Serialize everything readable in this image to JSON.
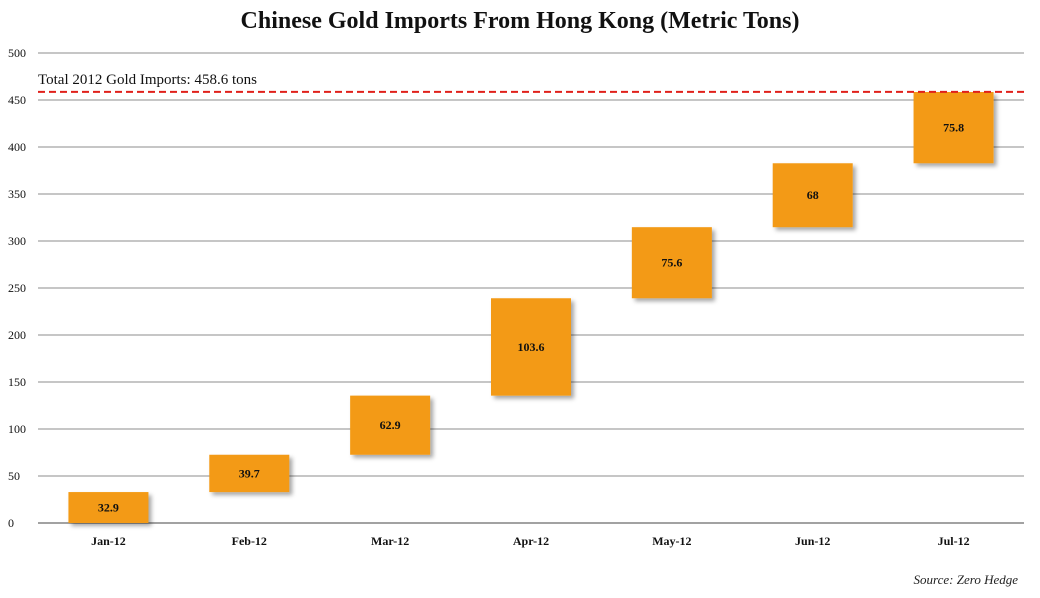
{
  "chart_data": {
    "type": "bar",
    "subtype": "waterfall",
    "title": "Chinese Gold Imports From Hong Kong (Metric Tons)",
    "categories": [
      "Jan-12",
      "Feb-12",
      "Mar-12",
      "Apr-12",
      "May-12",
      "Jun-12",
      "Jul-12"
    ],
    "values": [
      32.9,
      39.7,
      62.9,
      103.6,
      75.6,
      68,
      75.8
    ],
    "value_labels": [
      "32.9",
      "39.7",
      "62.9",
      "103.6",
      "75.6",
      "68",
      "75.8"
    ],
    "ylim": [
      0,
      500
    ],
    "yticks": [
      0,
      50,
      100,
      150,
      200,
      250,
      300,
      350,
      400,
      450,
      500
    ],
    "grid": true,
    "bar_color": "#F39A12",
    "reference_line": {
      "value": 458.6,
      "label": "Total 2012 Gold Imports:  458.6 tons",
      "color": "#E0201B",
      "style": "dashed"
    },
    "source": "Source: Zero Hedge"
  }
}
